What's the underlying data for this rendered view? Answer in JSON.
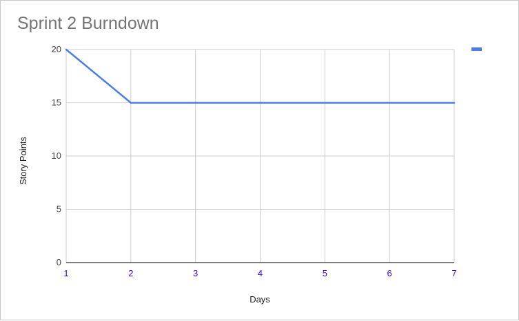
{
  "chart_data": {
    "type": "line",
    "title": "Sprint 2 Burndown",
    "xlabel": "Days",
    "ylabel": "Story Points",
    "x": [
      1,
      2,
      3,
      4,
      5,
      6,
      7
    ],
    "series": [
      {
        "values": [
          20,
          15,
          15,
          15,
          15,
          15,
          15
        ]
      }
    ],
    "xlim": [
      1,
      7
    ],
    "ylim": [
      0,
      20
    ],
    "yticks": [
      0,
      5,
      10,
      15,
      20
    ],
    "xticks": [
      1,
      2,
      3,
      4,
      5,
      6,
      7
    ],
    "grid": true,
    "legend_position": "top-right",
    "colors": {
      "series": "#4a7ee6",
      "grid": "#cccccc",
      "x_tick_text": "#3c00ff",
      "title": "#757575"
    }
  }
}
